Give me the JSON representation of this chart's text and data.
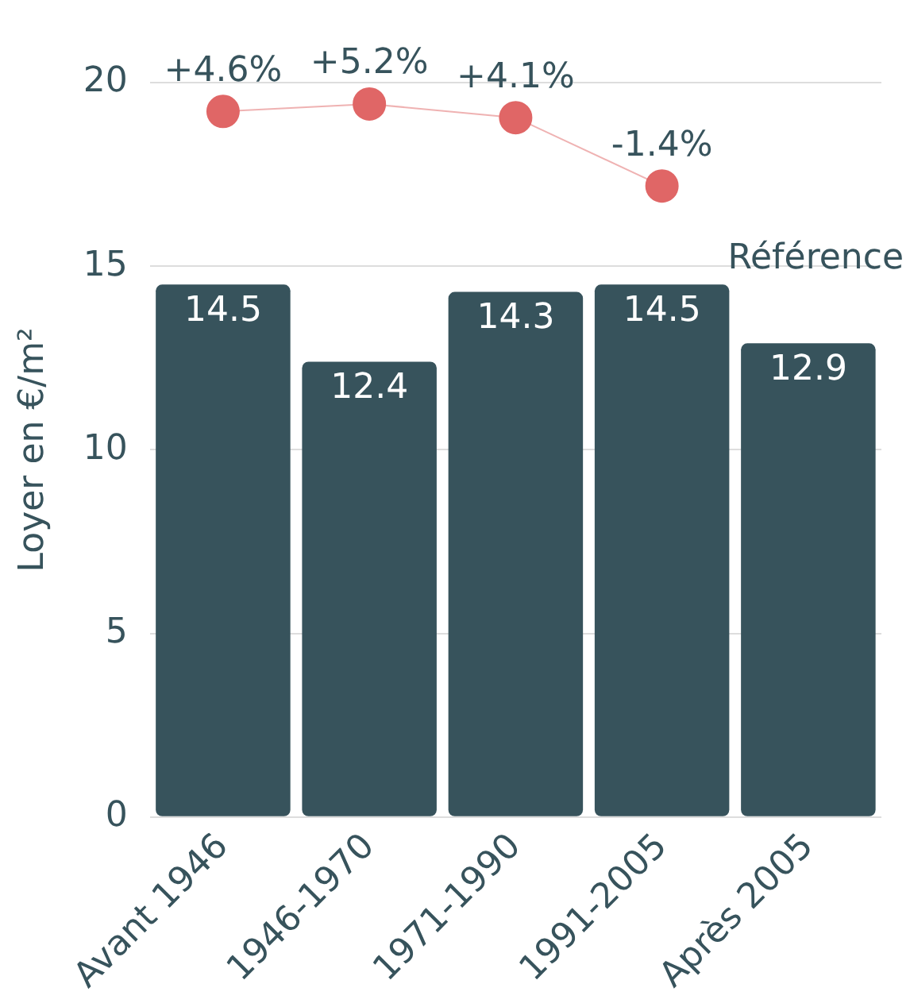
{
  "chart_data": {
    "type": "bar",
    "ylabel": "Loyer en €/m²",
    "categories": [
      "Avant 1946",
      "1946-1970",
      "1971-1990",
      "1991-2005",
      "Après 2005"
    ],
    "series": [
      {
        "color": "#37535c",
        "values": [
          14.5,
          12.4,
          14.3,
          14.5,
          12.9
        ],
        "value_labels": [
          "14.5",
          "12.4",
          "14.3",
          "14.5",
          "12.9"
        ]
      },
      {
        "type": "line",
        "axis": "y2",
        "color": "#e06666",
        "values": [
          4.6,
          5.2,
          4.1,
          -1.4,
          null
        ],
        "value_labels": [
          "+4.6%",
          "+5.2%",
          "+4.1%",
          "-1.4%",
          null
        ]
      }
    ],
    "annotations": [
      "Référence"
    ],
    "marker": "circle",
    "ylim": [
      0,
      20
    ],
    "yticks": [
      0,
      5,
      10,
      15,
      20
    ],
    "grid": "y"
  }
}
